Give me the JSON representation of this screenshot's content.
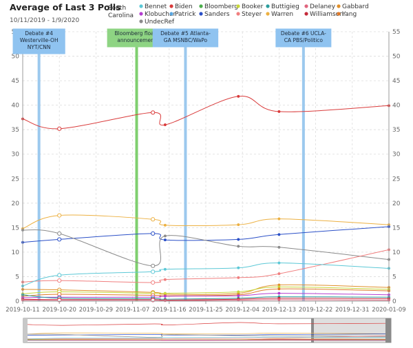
{
  "header": {
    "title": "Average of Last 3 Polls",
    "date_range": "10/11/2019 - 1/9/2020",
    "region_label": "South Carolina"
  },
  "chart_data": {
    "type": "line",
    "title": "Average of Last 3 Polls",
    "subtitle": "10/11/2019 - 1/9/2020",
    "xlabel": "",
    "ylabel": "",
    "x_range": [
      "2019-10-11",
      "2020-01-09"
    ],
    "ylim": [
      0,
      55
    ],
    "y_ticks": [
      0,
      5,
      10,
      15,
      20,
      25,
      30,
      35,
      40,
      45,
      50,
      55
    ],
    "x_ticks": [
      "2019-10-11",
      "2019-10-20",
      "2019-10-29",
      "2019-11-07",
      "2019-11-16",
      "2019-11-25",
      "2019-12-04",
      "2019-12-13",
      "2019-12-22",
      "2019-12-31",
      "2020-01-09"
    ],
    "grid": true,
    "legend_position": "top",
    "legend": [
      {
        "name": "Bennet",
        "color": "#5bc8d6"
      },
      {
        "name": "Biden",
        "color": "#d93a3a"
      },
      {
        "name": "Bloomberg",
        "color": "#4cae4c"
      },
      {
        "name": "Booker",
        "color": "#c7d63a"
      },
      {
        "name": "Buttigieg",
        "color": "#2a9d9d"
      },
      {
        "name": "Delaney",
        "color": "#e0657e"
      },
      {
        "name": "Gabbard",
        "color": "#e0902a"
      },
      {
        "name": "Klobuchar",
        "color": "#b43ed1"
      },
      {
        "name": "Patrick",
        "color": "#5aa6e0"
      },
      {
        "name": "Sanders",
        "color": "#2a4fc7"
      },
      {
        "name": "Steyer",
        "color": "#f07f7f"
      },
      {
        "name": "Warren",
        "color": "#ecb041"
      },
      {
        "name": "Williamson",
        "color": "#c42a3a"
      },
      {
        "name": "Yang",
        "color": "#e07a2a"
      },
      {
        "name": "UndecRef",
        "color": "#8a8a8a"
      }
    ],
    "series": [
      {
        "name": "Biden",
        "color": "#d93a3a",
        "points": [
          [
            "2019-10-11",
            37.2
          ],
          [
            "2019-10-20",
            35.2
          ],
          [
            "2019-11-12",
            38.5
          ],
          [
            "2019-11-15",
            36.0
          ],
          [
            "2019-12-03",
            41.8
          ],
          [
            "2019-12-13",
            38.7
          ],
          [
            "2020-01-09",
            39.9
          ]
        ]
      },
      {
        "name": "Warren",
        "color": "#ecb041",
        "points": [
          [
            "2019-10-11",
            14.8
          ],
          [
            "2019-10-20",
            17.5
          ],
          [
            "2019-11-12",
            16.7
          ],
          [
            "2019-11-15",
            15.5
          ],
          [
            "2019-12-03",
            15.6
          ],
          [
            "2019-12-13",
            16.8
          ],
          [
            "2020-01-09",
            15.6
          ]
        ]
      },
      {
        "name": "Sanders",
        "color": "#2a4fc7",
        "points": [
          [
            "2019-10-11",
            12.0
          ],
          [
            "2019-10-20",
            12.6
          ],
          [
            "2019-11-12",
            13.8
          ],
          [
            "2019-11-15",
            12.5
          ],
          [
            "2019-12-03",
            12.6
          ],
          [
            "2019-12-13",
            13.6
          ],
          [
            "2020-01-09",
            15.2
          ]
        ]
      },
      {
        "name": "UndecRef",
        "color": "#8a8a8a",
        "points": [
          [
            "2019-10-11",
            14.5
          ],
          [
            "2019-10-20",
            13.8
          ],
          [
            "2019-11-12",
            7.2
          ],
          [
            "2019-11-15",
            13.3
          ],
          [
            "2019-12-03",
            11.2
          ],
          [
            "2019-12-13",
            11.0
          ],
          [
            "2020-01-09",
            8.5
          ]
        ]
      },
      {
        "name": "Steyer",
        "color": "#f07f7f",
        "points": [
          [
            "2019-10-11",
            3.9
          ],
          [
            "2019-10-20",
            4.2
          ],
          [
            "2019-11-12",
            3.8
          ],
          [
            "2019-11-15",
            4.4
          ],
          [
            "2019-12-03",
            4.8
          ],
          [
            "2019-12-13",
            5.6
          ],
          [
            "2020-01-09",
            10.5
          ]
        ]
      },
      {
        "name": "Bennet",
        "color": "#5bc8d6",
        "points": [
          [
            "2019-10-11",
            3.1
          ],
          [
            "2019-10-20",
            5.3
          ],
          [
            "2019-11-12",
            6.0
          ],
          [
            "2019-11-15",
            6.5
          ],
          [
            "2019-12-03",
            6.8
          ],
          [
            "2019-12-13",
            7.8
          ],
          [
            "2020-01-09",
            6.7
          ]
        ]
      },
      {
        "name": "Gabbard",
        "color": "#e0902a",
        "points": [
          [
            "2019-10-11",
            2.4
          ],
          [
            "2019-10-20",
            2.3
          ],
          [
            "2019-11-12",
            1.8
          ],
          [
            "2019-11-15",
            1.4
          ],
          [
            "2019-12-03",
            1.6
          ],
          [
            "2019-12-13",
            3.3
          ],
          [
            "2020-01-09",
            2.8
          ]
        ]
      },
      {
        "name": "Booker",
        "color": "#c7d63a",
        "points": [
          [
            "2019-10-11",
            1.5
          ],
          [
            "2019-10-20",
            1.9
          ],
          [
            "2019-11-12",
            1.6
          ],
          [
            "2019-11-15",
            1.6
          ],
          [
            "2019-12-03",
            1.9
          ],
          [
            "2019-12-13",
            2.9
          ],
          [
            "2020-01-09",
            2.4
          ]
        ]
      },
      {
        "name": "Yang",
        "color": "#e07a2a",
        "points": [
          [
            "2019-10-11",
            1.0
          ],
          [
            "2019-10-20",
            1.4
          ],
          [
            "2019-11-12",
            1.2
          ],
          [
            "2019-11-15",
            1.1
          ],
          [
            "2019-12-03",
            1.3
          ],
          [
            "2019-12-13",
            2.5
          ],
          [
            "2020-01-09",
            2.1
          ]
        ]
      },
      {
        "name": "Klobuchar",
        "color": "#b43ed1",
        "points": [
          [
            "2019-10-11",
            0.7
          ],
          [
            "2019-10-20",
            0.8
          ],
          [
            "2019-11-12",
            0.8
          ],
          [
            "2019-11-15",
            1.0
          ],
          [
            "2019-12-03",
            1.1
          ],
          [
            "2019-12-13",
            1.6
          ],
          [
            "2020-01-09",
            1.3
          ]
        ]
      },
      {
        "name": "Buttigieg",
        "color": "#2a9d9d",
        "points": [
          [
            "2019-10-11",
            1.3
          ],
          [
            "2019-10-20",
            0.6
          ],
          [
            "2019-11-12",
            0.5
          ],
          [
            "2019-11-15",
            0.4
          ],
          [
            "2019-12-03",
            0.6
          ],
          [
            "2019-12-13",
            0.9
          ],
          [
            "2020-01-09",
            0.8
          ]
        ]
      },
      {
        "name": "Williamson",
        "color": "#c42a3a",
        "points": [
          [
            "2019-10-11",
            0.4
          ],
          [
            "2019-10-20",
            0.3
          ],
          [
            "2019-11-12",
            0.3
          ],
          [
            "2019-11-15",
            0.2
          ],
          [
            "2019-12-03",
            0.4
          ],
          [
            "2019-12-13",
            0.6
          ],
          [
            "2020-01-09",
            0.5
          ]
        ]
      },
      {
        "name": "Delaney",
        "color": "#e0657e",
        "points": [
          [
            "2019-10-11",
            0.2
          ],
          [
            "2019-10-20",
            0.2
          ],
          [
            "2019-11-12",
            0.2
          ],
          [
            "2019-11-15",
            0.1
          ],
          [
            "2019-12-03",
            0.2
          ],
          [
            "2019-12-13",
            0.3
          ],
          [
            "2020-01-09",
            0.2
          ]
        ]
      }
    ],
    "events": [
      {
        "date": "2019-10-15",
        "label": "Debate #4 Westerville-OH NYT/CNN",
        "lines": [
          "Debate #4",
          "Westerville-OH",
          "NYT/CNN"
        ],
        "color": "#9cc9ee",
        "box_color": "#8fc3f0"
      },
      {
        "date": "2019-11-08",
        "label": "Bloomberg floats announcement",
        "lines": [
          "Bloomberg floats",
          "announcement"
        ],
        "color": "#7fcf6f",
        "box_color": "#8ed483"
      },
      {
        "date": "2019-11-20",
        "label": "Debate #5 Atlanta-GA MSNBC/WaPo",
        "lines": [
          "Debate #5 Atlanta-",
          "GA MSNBC/WaPo"
        ],
        "color": "#9cc9ee",
        "box_color": "#8fc3f0"
      },
      {
        "date": "2019-12-19",
        "label": "Debate #6 UCLA-CA PBS/Politico",
        "lines": [
          "Debate #6 UCLA-",
          "CA PBS/Politico"
        ],
        "color": "#9cc9ee",
        "box_color": "#8fc3f0"
      }
    ]
  }
}
